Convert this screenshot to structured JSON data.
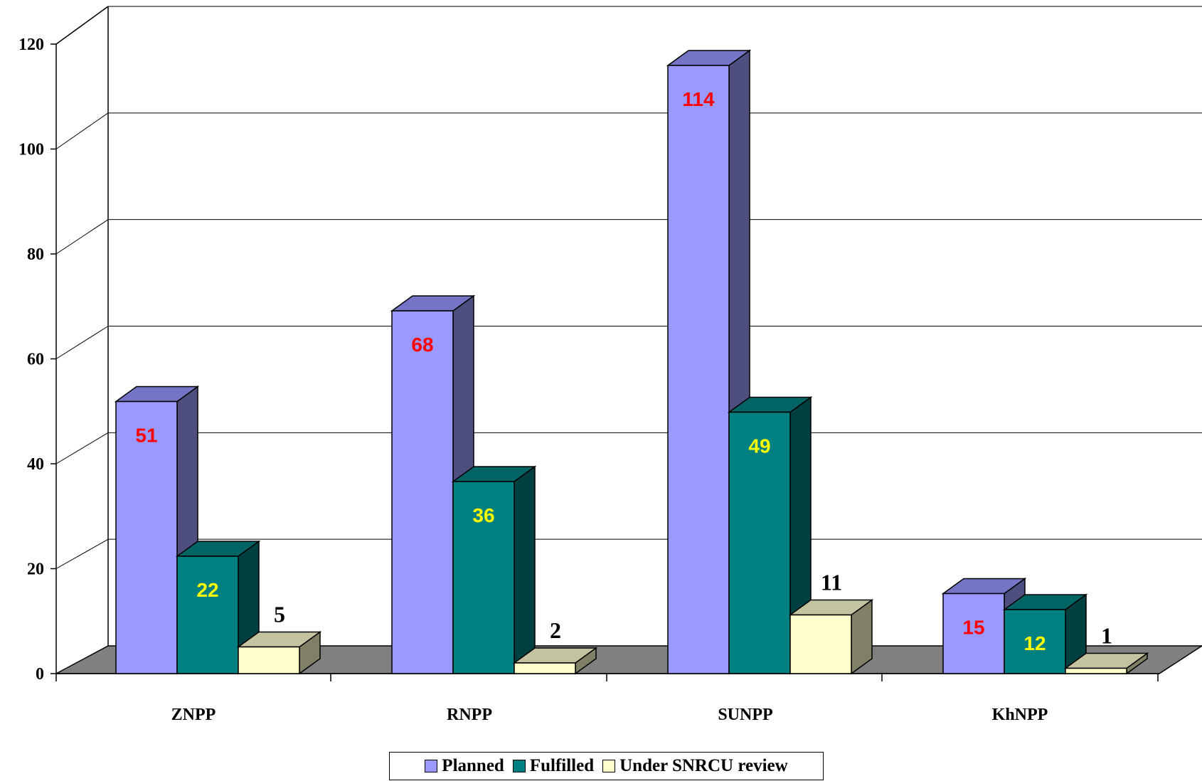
{
  "chart_data": {
    "type": "bar",
    "categories": [
      "ZNPP",
      "RNPP",
      "SUNPP",
      "KhNPP"
    ],
    "series": [
      {
        "name": "Planned",
        "values": [
          51,
          68,
          114,
          15
        ],
        "color": "#9999FF",
        "side_color": "#4E4E80",
        "top_color": "#7575C8",
        "label_color": "#FF0000"
      },
      {
        "name": "Fulfilled",
        "values": [
          22,
          36,
          49,
          12
        ],
        "color": "#008080",
        "side_color": "#004040",
        "top_color": "#006464",
        "label_color": "#FFFF00"
      },
      {
        "name": "Under SNRCU review",
        "values": [
          5,
          2,
          11,
          1
        ],
        "color": "#FFFFCC",
        "side_color": "#808066",
        "top_color": "#C3C39F",
        "label_color": "#000000"
      }
    ],
    "y_ticks": [
      "0",
      "20",
      "40",
      "60",
      "80",
      "100",
      "120"
    ],
    "ylim": [
      0,
      120
    ],
    "grid": true,
    "legend_position": "bottom",
    "floor_color": "#808080"
  }
}
